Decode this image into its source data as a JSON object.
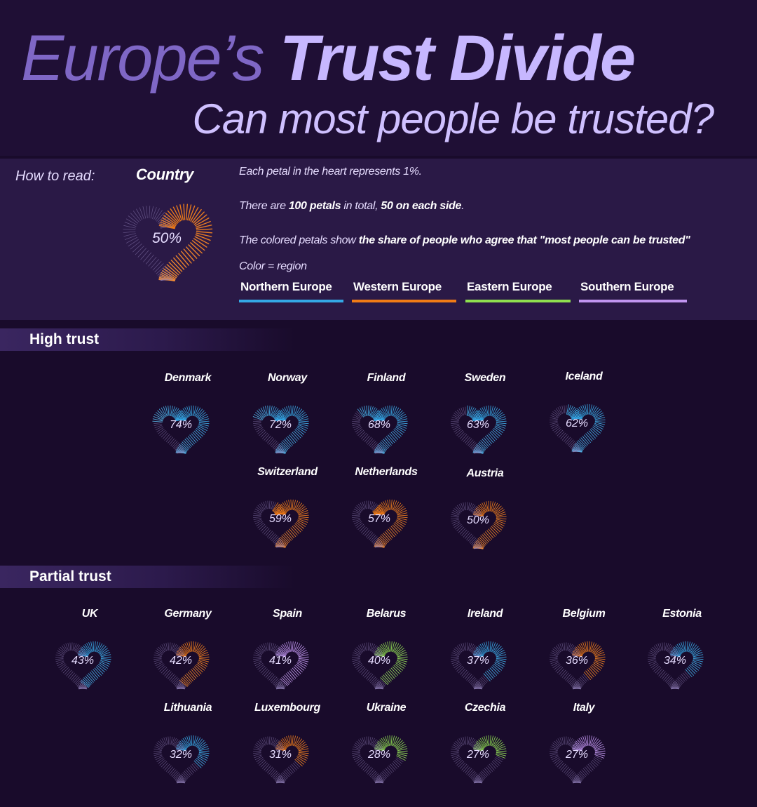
{
  "header": {
    "title_part1": "Europe’s",
    "title_part2": "Trust Divide",
    "subtitle": "Can most people be trusted?"
  },
  "legend": {
    "how_to_read": "How to read:",
    "sample_country": "Country",
    "sample_value": 50,
    "sample_value_label": "50%",
    "sample_region": "Western Europe",
    "line1": "Each petal in the heart represents 1%.",
    "line2_pre": "There are ",
    "line2_bold1": "100 petals",
    "line2_mid": " in total, ",
    "line2_bold2": "50 on each side",
    "line2_post": ".",
    "line3_pre": "The colored petals show ",
    "line3_bold": "the share of people who agree that \"most people can be trusted\"",
    "color_note": "Color = region",
    "regions": [
      {
        "name": "Northern Europe",
        "color": "#34a8e6"
      },
      {
        "name": "Western Europe",
        "color": "#f07b16"
      },
      {
        "name": "Eastern Europe",
        "color": "#8fe04f"
      },
      {
        "name": "Southern Europe",
        "color": "#c195f0"
      }
    ]
  },
  "sections": {
    "high": "High trust",
    "partial": "Partial trust"
  },
  "chart_data": {
    "type": "heart-petal",
    "unit": "%",
    "total_petals": 100,
    "petals_per_side": 50,
    "series": [
      {
        "section": "High trust",
        "country": "Denmark",
        "value": 74,
        "label": "74%",
        "region": "Northern Europe"
      },
      {
        "section": "High trust",
        "country": "Norway",
        "value": 72,
        "label": "72%",
        "region": "Northern Europe"
      },
      {
        "section": "High trust",
        "country": "Finland",
        "value": 68,
        "label": "68%",
        "region": "Northern Europe"
      },
      {
        "section": "High trust",
        "country": "Sweden",
        "value": 63,
        "label": "63%",
        "region": "Northern Europe"
      },
      {
        "section": "High trust",
        "country": "Iceland",
        "value": 62,
        "label": "62%",
        "region": "Northern Europe"
      },
      {
        "section": "High trust",
        "country": "Switzerland",
        "value": 59,
        "label": "59%",
        "region": "Western Europe"
      },
      {
        "section": "High trust",
        "country": "Netherlands",
        "value": 57,
        "label": "57%",
        "region": "Western Europe"
      },
      {
        "section": "High trust",
        "country": "Austria",
        "value": 50,
        "label": "50%",
        "region": "Western Europe"
      },
      {
        "section": "Partial trust",
        "country": "UK",
        "value": 43,
        "label": "43%",
        "region": "Northern Europe"
      },
      {
        "section": "Partial trust",
        "country": "Germany",
        "value": 42,
        "label": "42%",
        "region": "Western Europe"
      },
      {
        "section": "Partial trust",
        "country": "Spain",
        "value": 41,
        "label": "41%",
        "region": "Southern Europe"
      },
      {
        "section": "Partial trust",
        "country": "Belarus",
        "value": 40,
        "label": "40%",
        "region": "Eastern Europe"
      },
      {
        "section": "Partial trust",
        "country": "Ireland",
        "value": 37,
        "label": "37%",
        "region": "Northern Europe"
      },
      {
        "section": "Partial trust",
        "country": "Belgium",
        "value": 36,
        "label": "36%",
        "region": "Western Europe"
      },
      {
        "section": "Partial trust",
        "country": "Estonia",
        "value": 34,
        "label": "34%",
        "region": "Northern Europe"
      },
      {
        "section": "Partial trust",
        "country": "Lithuania",
        "value": 32,
        "label": "32%",
        "region": "Northern Europe"
      },
      {
        "section": "Partial trust",
        "country": "Luxembourg",
        "value": 31,
        "label": "31%",
        "region": "Western Europe"
      },
      {
        "section": "Partial trust",
        "country": "Ukraine",
        "value": 28,
        "label": "28%",
        "region": "Eastern Europe"
      },
      {
        "section": "Partial trust",
        "country": "Czechia",
        "value": 27,
        "label": "27%",
        "region": "Eastern Europe"
      },
      {
        "section": "Partial trust",
        "country": "Italy",
        "value": 27,
        "label": "27%",
        "region": "Southern Europe"
      }
    ]
  }
}
